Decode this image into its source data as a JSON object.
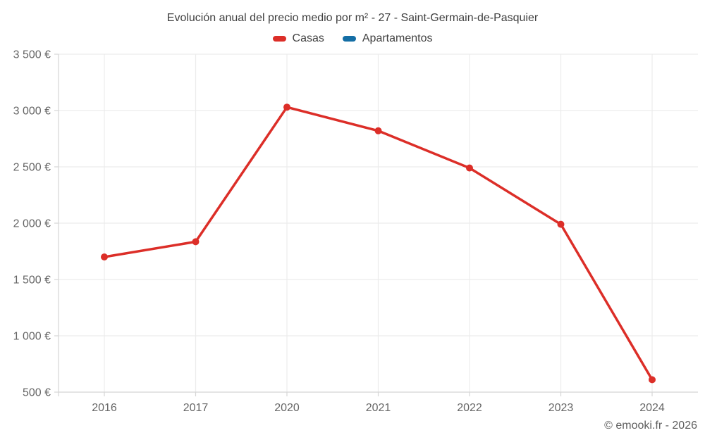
{
  "chart_data": {
    "type": "line",
    "title": "Evolución anual del precio medio por m² - 27 - Saint-Germain-de-Pasquier",
    "categories": [
      "2016",
      "2017",
      "2020",
      "2021",
      "2022",
      "2023",
      "2024"
    ],
    "series": [
      {
        "name": "Casas",
        "color": "#dc2e28",
        "values": [
          1700,
          1835,
          3030,
          2820,
          2490,
          1990,
          610
        ]
      },
      {
        "name": "Apartamentos",
        "color": "#146ea5",
        "values": []
      }
    ],
    "ylim": [
      500,
      3500
    ],
    "y_ticks": [
      {
        "value": 3500,
        "label": "3 500 €"
      },
      {
        "value": 3000,
        "label": "3 000 €"
      },
      {
        "value": 2500,
        "label": "2 500 €"
      },
      {
        "value": 2000,
        "label": "2 000 €"
      },
      {
        "value": 1500,
        "label": "1 500 €"
      },
      {
        "value": 1000,
        "label": "1 000 €"
      },
      {
        "value": 500,
        "label": "500 €"
      }
    ],
    "grid": true,
    "legend_position": "top",
    "xlabel": "",
    "ylabel": ""
  },
  "footer": {
    "copyright": "© emooki.fr - 2026"
  },
  "colors": {
    "background": "#ffffff",
    "grid": "#ececec",
    "axis": "#d6d6d6",
    "tick_text": "#666666",
    "title_text": "#3f3f3f",
    "legend_text": "#424242"
  }
}
